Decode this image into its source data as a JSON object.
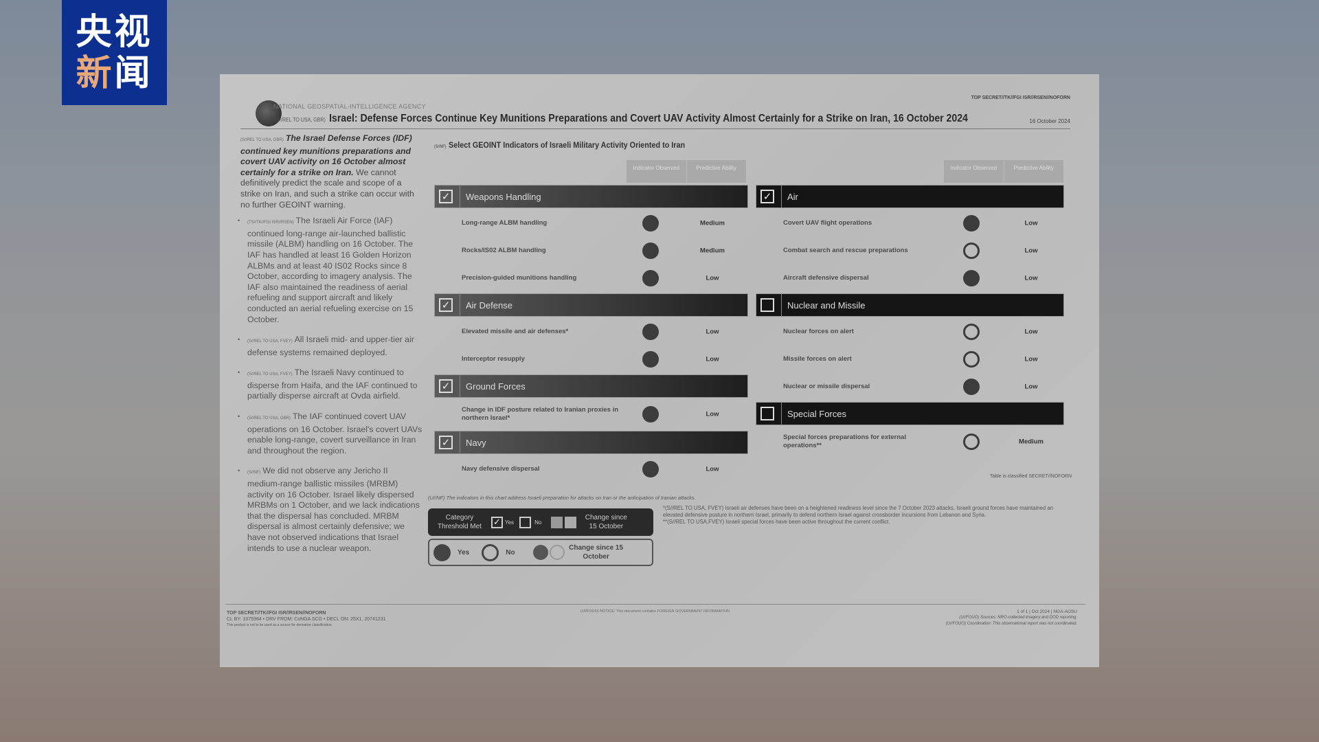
{
  "broadcaster": {
    "logo_line1": "央视",
    "logo_line2a": "新",
    "logo_line2b": "闻"
  },
  "doc": {
    "agency": "NATIONAL GEOSPATIAL-INTELLIGENCE AGENCY",
    "classification_top": "TOP SECRET//TK//FGI ISR//RSEN//NOFORN",
    "title_marking": "(S//REL TO USA, GBR)",
    "title": "Israel: Defense Forces Continue Key Munitions Preparations and Covert UAV Activity Almost Certainly for a Strike on Iran, 16 October 2024",
    "date": "16 October 2024",
    "lead_marking": "(S//REL TO USA, GBR)",
    "lead_bold": "The Israel Defense Forces (IDF) continued key munitions preparations and covert UAV activity on 16 October almost certainly for a strike on Iran.",
    "lead_rest": " We cannot definitively predict the scale and scope of a strike on Iran, and such a strike can occur with no further GEOINT warning.",
    "bullets": [
      {
        "marking": "(TS//TK//FGI ISR//RSEN)",
        "text": "The Israeli Air Force (IAF) continued long-range air-launched ballistic missile (ALBM) handling on 16 October. The IAF has handled at least 16 Golden Horizon ALBMs and at least 40 IS02 Rocks since 8 October, according to imagery analysis. The IAF also maintained the readiness of aerial refueling and support aircraft and likely conducted an aerial refueling exercise on 15 October."
      },
      {
        "marking": "(S//REL TO USA, FVEY)",
        "text": "All Israeli mid- and upper-tier air defense systems remained deployed."
      },
      {
        "marking": "(S//REL TO USA, FVEY)",
        "text": "The Israeli Navy continued to disperse from Haifa, and the IAF continued to partially disperse aircraft at Ovda airfield."
      },
      {
        "marking": "(S//REL TO USA, GBR)",
        "text": "The IAF continued covert UAV operations on 16 October. Israel's covert UAVs enable long-range, covert surveillance in Iran and throughout the region."
      },
      {
        "marking": "(S//NF)",
        "text": "We did not observe any Jericho II medium-range ballistic missiles (MRBM) activity on 16 October. Israel likely dispersed MRBMs on 1 October, and we lack indications that the dispersal has concluded. MRBM dispersal is almost certainly defensive; we have not observed indications that Israel intends to use a nuclear weapon."
      }
    ],
    "subtitle_marking": "(S//NF)",
    "subtitle": "Select GEOINT Indicators of Israeli Military Activity Oriented to Iran",
    "col_indicator": "Indicator Observed",
    "col_predictive": "Predictive Ability",
    "left_table": [
      {
        "name": "Weapons Handling",
        "met": true,
        "rows": [
          {
            "label": "Long-range ALBM handling",
            "observed": true,
            "ability": "Medium"
          },
          {
            "label": "Rocks/IS02 ALBM handling",
            "observed": true,
            "ability": "Medium"
          },
          {
            "label": "Precision-guided munitions handling",
            "observed": true,
            "ability": "Low"
          }
        ]
      },
      {
        "name": "Air Defense",
        "met": true,
        "rows": [
          {
            "label": "Elevated missile and air defenses*",
            "observed": true,
            "ability": "Low"
          },
          {
            "label": "Interceptor resupply",
            "observed": true,
            "ability": "Low"
          }
        ]
      },
      {
        "name": "Ground Forces",
        "met": true,
        "rows": [
          {
            "label": "Change in IDF posture related to Iranian proxies in northern Israel*",
            "observed": true,
            "ability": "Low"
          }
        ]
      },
      {
        "name": "Navy",
        "met": true,
        "rows": [
          {
            "label": "Navy defensive dispersal",
            "observed": true,
            "ability": "Low"
          }
        ]
      }
    ],
    "right_table": [
      {
        "name": "Air",
        "met": true,
        "rows": [
          {
            "label": "Covert UAV flight operations",
            "observed": true,
            "ability": "Low"
          },
          {
            "label": "Combat search and rescue preparations",
            "observed": false,
            "ability": "Low"
          },
          {
            "label": "Aircraft defensive dispersal",
            "observed": true,
            "ability": "Low"
          }
        ]
      },
      {
        "name": "Nuclear and Missile",
        "met": false,
        "rows": [
          {
            "label": "Nuclear forces on alert",
            "observed": false,
            "ability": "Low"
          },
          {
            "label": "Missile forces on alert",
            "observed": false,
            "ability": "Low"
          },
          {
            "label": "Nuclear or missile dispersal",
            "observed": true,
            "ability": "Low"
          }
        ]
      },
      {
        "name": "Special Forces",
        "met": false,
        "rows": [
          {
            "label": "Special forces preparations for external operations**",
            "observed": false,
            "ability": "Medium"
          }
        ]
      }
    ],
    "table_classification": "Table is classified SECRET//NOFORN",
    "indicator_note": "(U//NF) The indicators in this chart address Israeli preparation for attacks on Iran or the anticipation of Iranian attacks.",
    "legend": {
      "category": "Category Threshold Met",
      "yes": "Yes",
      "no": "No",
      "change": "Change since 15 October"
    },
    "footnote1": "*(S//REL TO USA, FVEY) Israeli air defenses have been on a heightened readiness level since the 7 October 2023 attacks. Israeli ground forces have maintained an elevated defensive posture in northern Israel, primarily to defend northern Israel against crossborder incursions from Lebanon and Syria.",
    "footnote2": "**(S//REL TO USA,FVEY) Israeli special forces have been active throughout the current conflict.",
    "footer_class": "TOP SECRET//TK//FGI ISR//RSEN//NOFORN",
    "footer_cl": "CL BY: 1075984 • DRV FROM: CoNGA SCG • DECL ON: 25X1, 20741231",
    "footer_note": "This product is not to be used as a source for derivative classification.",
    "footer_center": "(U//FOUO) NOTICE: This document contains FOREIGN GOVERNMENT INFORMATION",
    "footer_page": "1 of 1 | Oct 2024 | NGA-AOSU",
    "footer_sources": "(U//FOUO) Sources: NRO-collected imagery and DOD reporting.",
    "footer_coord": "(U//FOUO) Coordination: This observational report was not coordinated."
  }
}
